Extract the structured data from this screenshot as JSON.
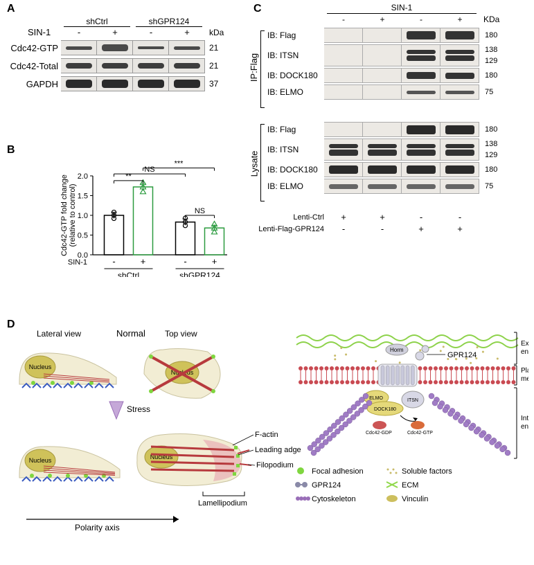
{
  "panels": {
    "A": "A",
    "B": "B",
    "C": "C",
    "D": "D"
  },
  "panelA": {
    "groups": [
      "shCtrl",
      "shGPR124"
    ],
    "treatment_label": "SIN-1",
    "conditions": [
      "-",
      "+",
      "-",
      "+"
    ],
    "kda_label": "kDa",
    "rows": [
      {
        "label": "Cdc42-GTP",
        "kda": "21",
        "band_heights": [
          5,
          10,
          4,
          5
        ],
        "color": "#4a4a4a"
      },
      {
        "label": "Cdc42-Total",
        "kda": "21",
        "band_heights": [
          8,
          8,
          8,
          8
        ],
        "color": "#3d3d3d"
      },
      {
        "label": "GAPDH",
        "kda": "37",
        "band_heights": [
          12,
          12,
          12,
          12
        ],
        "color": "#2a2a2a"
      }
    ]
  },
  "panelB": {
    "ylabel_l1": "Cdc42-GTP fold change",
    "ylabel_l2": "(relative to control)",
    "ylim": [
      0,
      2.0
    ],
    "yticks": [
      0,
      0.5,
      1.0,
      1.5,
      2.0
    ],
    "groups": [
      "shCtrl",
      "shGPR124"
    ],
    "cond_label": "SIN-1",
    "conditions": [
      "-",
      "+",
      "-",
      "+"
    ],
    "values": [
      1.0,
      1.72,
      0.83,
      0.68
    ],
    "errors": [
      0.08,
      0.09,
      0.08,
      0.07
    ],
    "bar_colors": [
      "#000000",
      "#2b9b3f",
      "#000000",
      "#2b9b3f"
    ],
    "fill": "none",
    "bg": "#ffffff",
    "annotations": [
      {
        "from": 0,
        "to": 1,
        "label": "**",
        "y": 1.88
      },
      {
        "from": 0,
        "to": 2,
        "label": "NS",
        "y": 2.05
      },
      {
        "from": 2,
        "to": 3,
        "label": "NS",
        "y": 1.0
      },
      {
        "from": 1,
        "to": 3,
        "label": "***",
        "y": 2.2
      }
    ],
    "point_marker": {
      "ctrl": "circle",
      "treat": "triangle"
    },
    "points": {
      "0": [
        0.92,
        1.0,
        1.08
      ],
      "1": [
        1.6,
        1.72,
        1.83
      ],
      "2": [
        0.74,
        0.83,
        0.93
      ],
      "3": [
        0.58,
        0.68,
        0.78
      ]
    }
  },
  "panelC": {
    "top_label": "SIN-1",
    "kda_label": "KDa",
    "conditions": [
      "-",
      "+",
      "-",
      "+"
    ],
    "ip_label": "IP:Flag",
    "lysate_label": "Lysate",
    "rows_ip": [
      {
        "ib": "IB: Flag",
        "kda": [
          "180"
        ],
        "bands": [
          [
            0
          ],
          [
            0
          ],
          [
            12
          ],
          [
            12
          ]
        ],
        "color": "#333"
      },
      {
        "ib": "IB: ITSN",
        "kda": [
          "138",
          "129"
        ],
        "bands": [
          [
            0,
            0
          ],
          [
            0,
            0
          ],
          [
            6,
            8
          ],
          [
            6,
            8
          ]
        ],
        "color": "#333",
        "double": true,
        "height": 32
      },
      {
        "ib": "IB: DOCK180",
        "kda": [
          "180"
        ],
        "bands": [
          [
            0
          ],
          [
            0
          ],
          [
            10
          ],
          [
            9
          ]
        ],
        "color": "#333"
      },
      {
        "ib": "IB: ELMO",
        "kda": [
          "75"
        ],
        "bands": [
          [
            0
          ],
          [
            0
          ],
          [
            5
          ],
          [
            5
          ]
        ],
        "color": "#555"
      }
    ],
    "rows_lysate": [
      {
        "ib": "IB: Flag",
        "kda": [
          "180"
        ],
        "bands": [
          [
            0
          ],
          [
            0
          ],
          [
            13
          ],
          [
            13
          ]
        ],
        "color": "#2a2a2a"
      },
      {
        "ib": "IB: ITSN",
        "kda": [
          "138",
          "129"
        ],
        "bands": [
          [
            6,
            9
          ],
          [
            6,
            9
          ],
          [
            6,
            9
          ],
          [
            6,
            9
          ]
        ],
        "color": "#333",
        "double": true,
        "height": 32
      },
      {
        "ib": "IB: DOCK180",
        "kda": [
          "180"
        ],
        "bands": [
          [
            12
          ],
          [
            12
          ],
          [
            12
          ],
          [
            12
          ]
        ],
        "color": "#2a2a2a"
      },
      {
        "ib": "IB: ELMO",
        "kda": [
          "75"
        ],
        "bands": [
          [
            7
          ],
          [
            7
          ],
          [
            7
          ],
          [
            7
          ]
        ],
        "color": "#666"
      }
    ],
    "bottom_conditions": [
      {
        "label": "Lenti-Ctrl",
        "marks": [
          "+",
          "+",
          "-",
          "-"
        ]
      },
      {
        "label": "Lenti-Flag-GPR124",
        "marks": [
          "-",
          "-",
          "+",
          "+"
        ]
      }
    ]
  },
  "panelD": {
    "labels": {
      "lateral": "Lateral view",
      "normal": "Normal",
      "top": "Top view",
      "stress": "Stress",
      "factin": "F-actin",
      "leading": "Leading adge",
      "filo": "Filopodium",
      "lamel": "Lamellipodium",
      "polarity": "Polarity axis",
      "nucleus": "Nucleus",
      "gpr124": "GPR124",
      "extra": "Extracellular\nenvironment",
      "plasma": "Plasma\nmembrane",
      "intra": "Intracellular\nenvironment",
      "horm": "Horm",
      "elmo": "ELMO",
      "dock": "DOCK180",
      "itsn": "ITSN",
      "gdp": "Cdc42-GDP",
      "gtp": "Cdc42-GTP"
    },
    "legend": [
      {
        "name": "Focal adhesion",
        "color": "#7fd63f",
        "type": "dot"
      },
      {
        "name": "Soluble factors",
        "color": "#c9bb6a",
        "type": "dots"
      },
      {
        "name": "GPR124",
        "color": "#8a8aa8",
        "type": "dumbbell"
      },
      {
        "name": "ECM",
        "color": "#8fd84a",
        "type": "cross"
      },
      {
        "name": "Cytoskeleton",
        "color": "#9a6fb8",
        "type": "chain"
      },
      {
        "name": "Vinculin",
        "color": "#cdbf5e",
        "type": "oval"
      }
    ],
    "colors": {
      "cell_fill": "#f2edd4",
      "nucleus_fill": "#cfc25a",
      "actin": "#b73a3d",
      "ecm_blue": "#3a5bbf",
      "membrane_red": "#c94a52",
      "cytoskeleton": "#a07cc5",
      "ecm_green": "#8dd24a",
      "gdp_red": "#cc5555",
      "gtp_red": "#d96b3a"
    }
  }
}
